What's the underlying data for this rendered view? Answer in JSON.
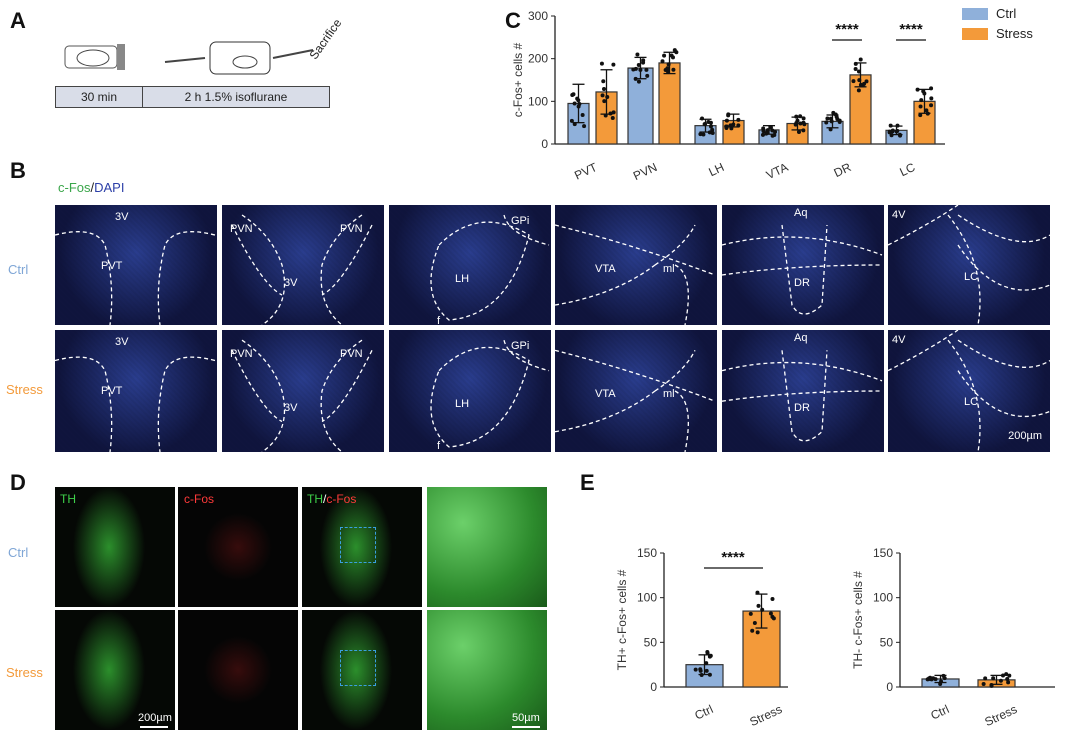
{
  "panels": {
    "a": "A",
    "b": "B",
    "c": "C",
    "d": "D",
    "e": "E"
  },
  "timeline": {
    "step1": "30 min",
    "step2": "2 h 1.5% isoflurane",
    "end": "Sacrifice"
  },
  "legend": {
    "ctrl": "Ctrl",
    "stress": "Stress"
  },
  "colors": {
    "ctrl": "#8fb0da",
    "stress": "#f39a3a"
  },
  "b": {
    "stain_green": "c-Fos",
    "stain_sep": "/",
    "stain_blue": "DAPI",
    "row_ctrl": "Ctrl",
    "row_stress": "Stress",
    "scale": "200µm",
    "regions": [
      [
        "3V",
        "PVT"
      ],
      [
        "PVN",
        "3V",
        "PVN"
      ],
      [
        "GPi",
        "LH",
        "f"
      ],
      [
        "VTA",
        "ml"
      ],
      [
        "Aq",
        "DR"
      ],
      [
        "4V",
        "LC"
      ]
    ]
  },
  "d": {
    "col1": "TH",
    "col2": "c-Fos",
    "col3a": "TH",
    "col3sep": "/",
    "col3b": "c-Fos",
    "row_ctrl": "Ctrl",
    "row_stress": "Stress",
    "scale1": "200µm",
    "scale2": "50µm"
  },
  "chart_data": [
    {
      "type": "bar",
      "title": "",
      "ylabel": "c-Fos+ cells #",
      "ylim": [
        0,
        300
      ],
      "yticks": [
        "0",
        "100",
        "200",
        "300"
      ],
      "categories": [
        "PVT",
        "PVN",
        "LH",
        "VTA",
        "DR",
        "LC"
      ],
      "series": [
        {
          "name": "Ctrl",
          "values": [
            95,
            178,
            43,
            33,
            53,
            32
          ],
          "sd": [
            45,
            25,
            15,
            10,
            15,
            10
          ]
        },
        {
          "name": "Stress",
          "values": [
            122,
            190,
            55,
            48,
            162,
            100
          ],
          "sd": [
            52,
            25,
            15,
            15,
            28,
            28
          ]
        }
      ],
      "significance": [
        {
          "category": "DR",
          "label": "****"
        },
        {
          "category": "LC",
          "label": "****"
        }
      ]
    },
    {
      "type": "bar",
      "ylabel": "TH+ c-Fos+ cells #",
      "ylim": [
        0,
        150
      ],
      "yticks": [
        "0",
        "50",
        "100",
        "150"
      ],
      "categories": [
        "Ctrl",
        "Stress"
      ],
      "values": [
        25,
        85
      ],
      "sd": [
        11,
        19
      ],
      "significance": "****"
    },
    {
      "type": "bar",
      "ylabel": "TH- c-Fos+ cells #",
      "ylim": [
        0,
        150
      ],
      "yticks": [
        "0",
        "50",
        "100",
        "150"
      ],
      "categories": [
        "Ctrl",
        "Stress"
      ],
      "values": [
        9,
        8
      ],
      "sd": [
        4,
        5
      ]
    }
  ]
}
